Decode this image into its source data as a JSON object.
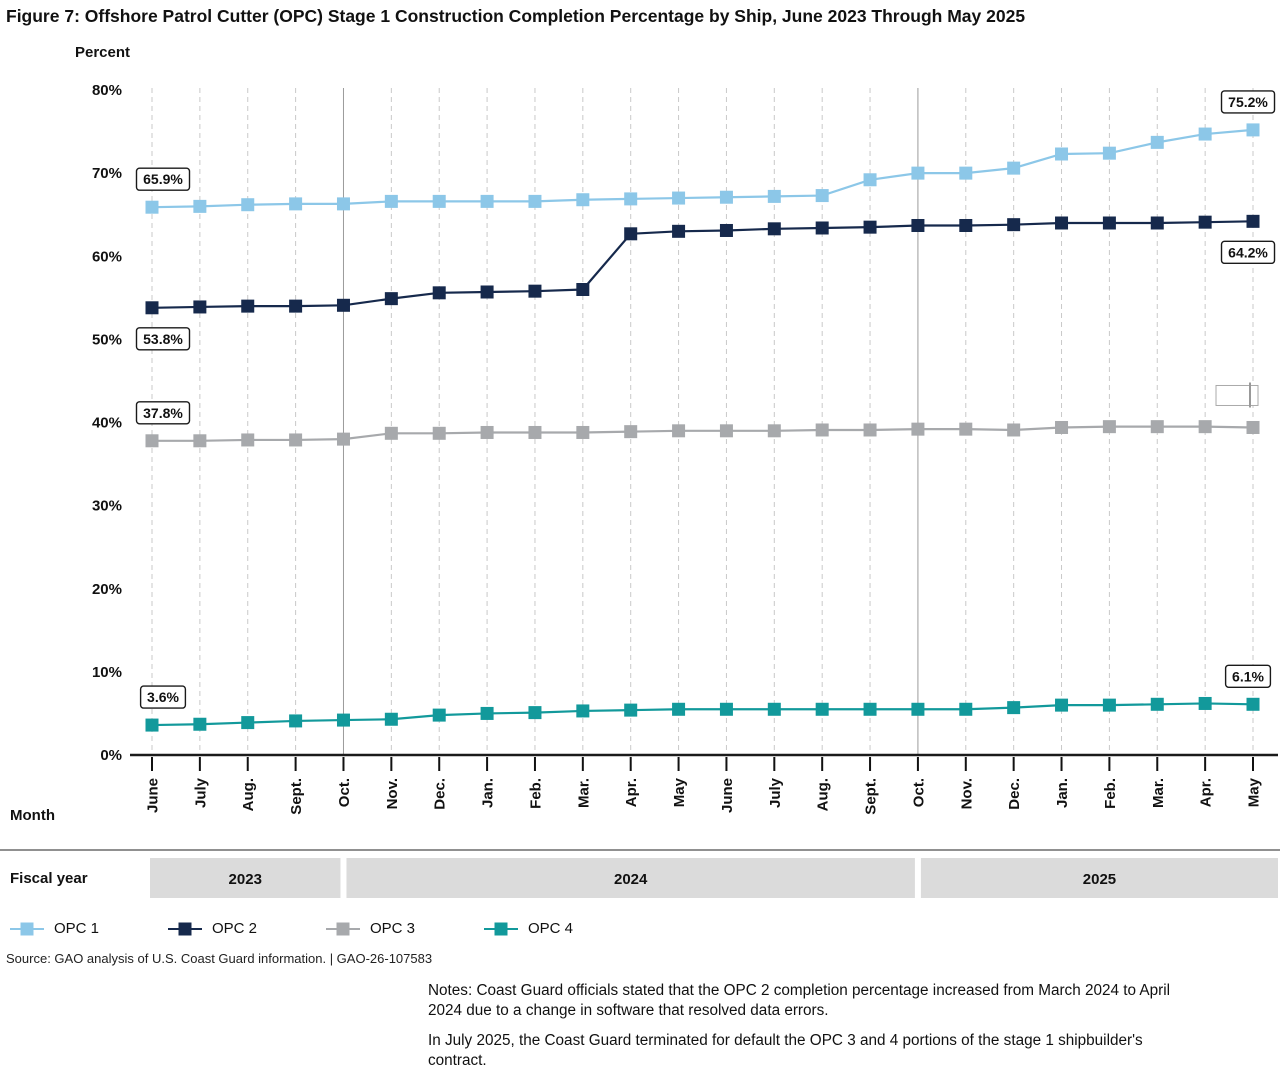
{
  "title": "Figure 7: Offshore Patrol Cutter (OPC) Stage 1 Construction Completion Percentage by Ship, June 2023 Through May 2025",
  "y_axis_title": "Percent",
  "month_axis_label": "Month",
  "fiscal_axis_label": "Fiscal year",
  "source": "Source: GAO analysis of U.S. Coast Guard information.  |  GAO-26-107583",
  "notes": {
    "para1": "Notes: Coast Guard officials stated that the OPC 2 completion percentage increased from March 2024 to April 2024 due to a change in software that resolved data errors.",
    "para2": "In July 2025, the Coast Guard terminated for default the OPC 3 and 4 portions of the stage 1 shipbuilder's contract."
  },
  "chart_data": {
    "type": "line",
    "title": "Offshore Patrol Cutter (OPC) Stage 1 Construction Completion Percentage by Ship, June 2023 Through May 2025",
    "xlabel": "Month",
    "ylabel": "Percent",
    "ylim": [
      0,
      80
    ],
    "y_ticks": [
      "0%",
      "10%",
      "20%",
      "30%",
      "40%",
      "50%",
      "60%",
      "70%",
      "80%"
    ],
    "grid": "vertical-dashed",
    "legend_position": "bottom",
    "x": [
      "June",
      "July",
      "Aug.",
      "Sept.",
      "Oct.",
      "Nov.",
      "Dec.",
      "Jan.",
      "Feb.",
      "Mar.",
      "Apr.",
      "May",
      "June",
      "July",
      "Aug.",
      "Sept.",
      "Oct.",
      "Nov.",
      "Dec.",
      "Jan.",
      "Feb.",
      "Mar.",
      "Apr.",
      "May"
    ],
    "fiscal_years": [
      {
        "label": "2023",
        "start_index": 0,
        "end_index": 3
      },
      {
        "label": "2024",
        "start_index": 4,
        "end_index": 15
      },
      {
        "label": "2025",
        "start_index": 16,
        "end_index": 23
      }
    ],
    "series": [
      {
        "name": "OPC 1",
        "color": "#8CC7E8",
        "values": [
          65.9,
          66.0,
          66.2,
          66.3,
          66.3,
          66.6,
          66.6,
          66.6,
          66.6,
          66.8,
          66.9,
          67.0,
          67.1,
          67.2,
          67.3,
          69.2,
          70.0,
          70.0,
          70.6,
          72.3,
          72.4,
          73.7,
          74.7,
          75.2
        ],
        "start_label": "65.9%",
        "end_label": "75.2%"
      },
      {
        "name": "OPC 2",
        "color": "#16294C",
        "values": [
          53.8,
          53.9,
          54.0,
          54.0,
          54.1,
          54.9,
          55.6,
          55.7,
          55.8,
          56.0,
          62.7,
          63.0,
          63.1,
          63.3,
          63.4,
          63.5,
          63.7,
          63.7,
          63.8,
          64.0,
          64.0,
          64.0,
          64.1,
          64.2
        ],
        "start_label": "53.8%",
        "end_label": "64.2%"
      },
      {
        "name": "OPC 3",
        "color": "#A7A9AC",
        "values": [
          37.8,
          37.8,
          37.9,
          37.9,
          38.0,
          38.7,
          38.7,
          38.8,
          38.8,
          38.8,
          38.9,
          39.0,
          39.0,
          39.0,
          39.1,
          39.1,
          39.2,
          39.2,
          39.1,
          39.4,
          39.5,
          39.5,
          39.5,
          39.4
        ],
        "start_label": "37.8%",
        "end_label": ""
      },
      {
        "name": "OPC 4",
        "color": "#12999B",
        "values": [
          3.6,
          3.7,
          3.9,
          4.1,
          4.2,
          4.3,
          4.8,
          5.0,
          5.1,
          5.3,
          5.4,
          5.5,
          5.5,
          5.5,
          5.5,
          5.5,
          5.5,
          5.5,
          5.7,
          6.0,
          6.0,
          6.1,
          6.2,
          6.1
        ],
        "start_label": "3.6%",
        "end_label": "6.1%"
      }
    ]
  }
}
